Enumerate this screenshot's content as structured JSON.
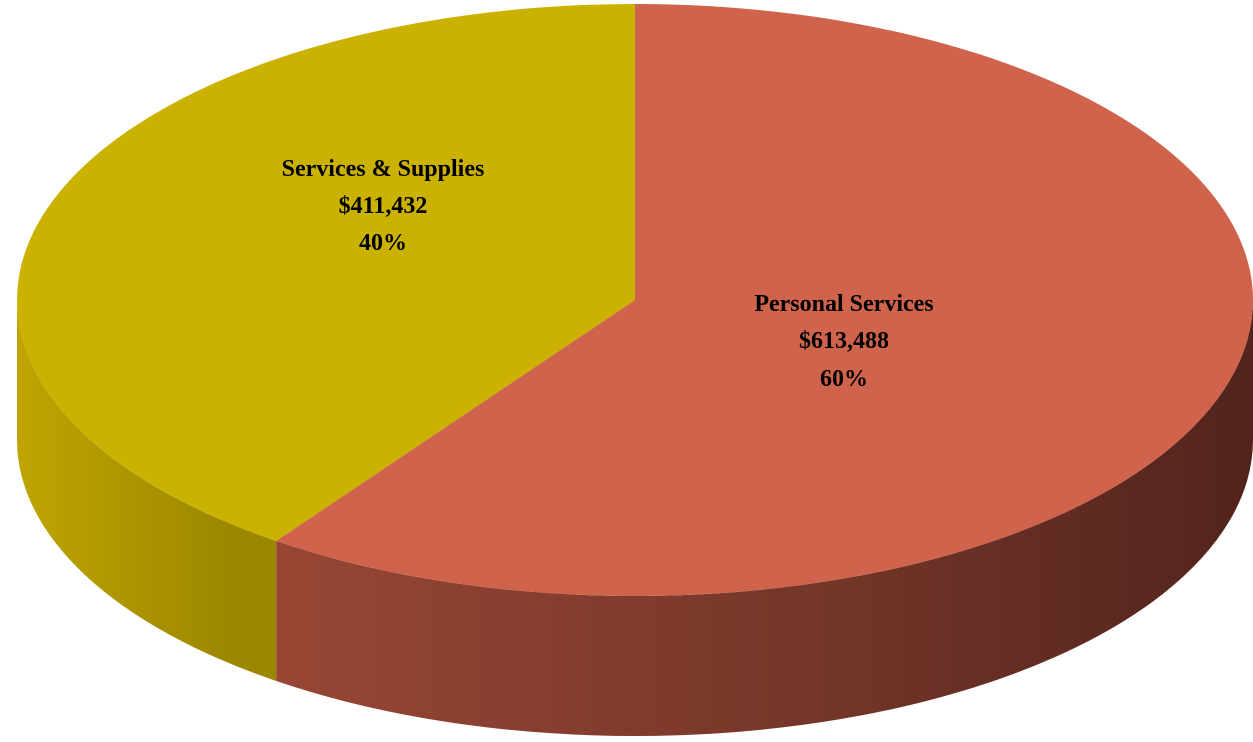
{
  "chart_data": {
    "type": "pie",
    "style": "3d",
    "title": "",
    "slices": [
      {
        "name": "Personal Services",
        "value": 613488,
        "value_label": "$613,488",
        "percent_label": "60%",
        "color": "#d0634b",
        "side_color": "#8a3c2c"
      },
      {
        "name": "Services & Supplies",
        "value": 411432,
        "value_label": "$411,432",
        "percent_label": "40%",
        "color": "#cbb200",
        "side_color": "#a68f00"
      }
    ],
    "legend": "none"
  }
}
